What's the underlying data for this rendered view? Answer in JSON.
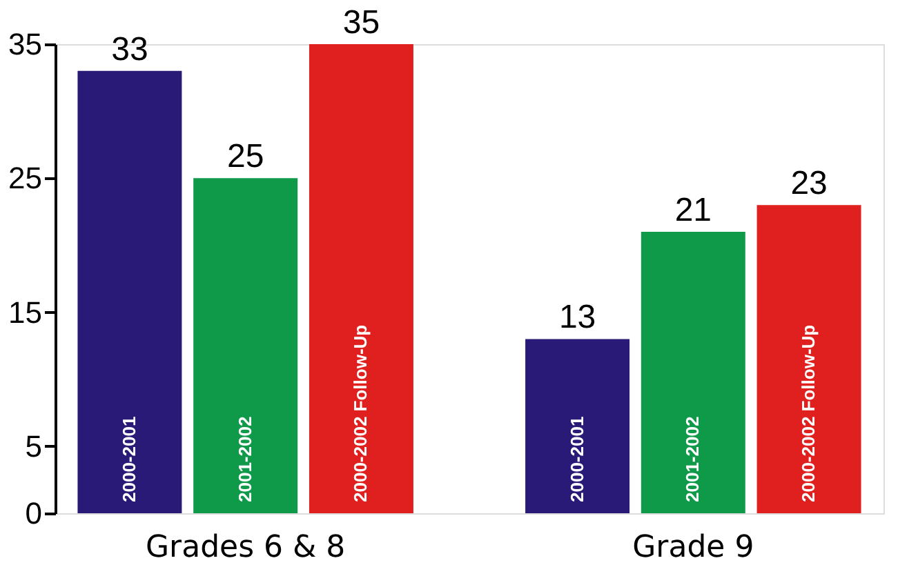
{
  "chart_data": {
    "type": "bar",
    "categories": [
      "Grades 6 & 8",
      "Grade 9"
    ],
    "series": [
      {
        "name": "2000-2001",
        "color": "#2a1a78",
        "values": [
          33,
          13
        ]
      },
      {
        "name": "2001-2002",
        "color": "#0f9a4a",
        "values": [
          25,
          21
        ]
      },
      {
        "name": "2000-2002 Follow-Up",
        "color": "#e0201e",
        "values": [
          35,
          23
        ]
      }
    ],
    "ylim": [
      0,
      35
    ],
    "yticks": [
      0,
      5,
      15,
      25,
      35
    ],
    "data_labels": true,
    "grid": false,
    "legend": false
  }
}
